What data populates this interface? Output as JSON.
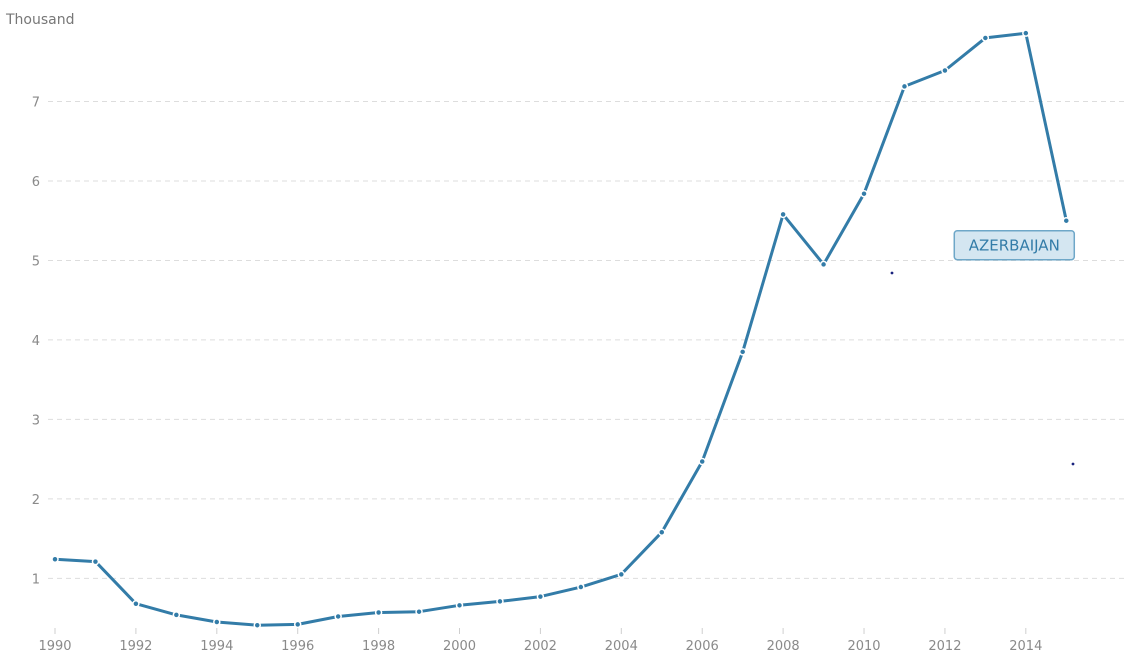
{
  "chart_data": {
    "type": "line",
    "y_unit_label": "Thousand",
    "x": [
      1990,
      1991,
      1992,
      1993,
      1994,
      1995,
      1996,
      1997,
      1998,
      1999,
      2000,
      2001,
      2002,
      2003,
      2004,
      2005,
      2006,
      2007,
      2008,
      2009,
      2010,
      2011,
      2012,
      2013,
      2014,
      2015
    ],
    "x_tick_labels": [
      "1990",
      "1992",
      "1994",
      "1996",
      "1998",
      "2000",
      "2002",
      "2004",
      "2006",
      "2008",
      "2010",
      "2012",
      "2014"
    ],
    "y_tick_labels": [
      "1",
      "2",
      "3",
      "4",
      "5",
      "6",
      "7"
    ],
    "ylim": [
      0.4,
      7.9
    ],
    "xlim": [
      1990,
      2016.6
    ],
    "grid": true,
    "series": [
      {
        "name": "AZERBAIJAN",
        "color": "#337ca8",
        "values": [
          1.24,
          1.21,
          0.68,
          0.54,
          0.45,
          0.41,
          0.42,
          0.52,
          0.57,
          0.58,
          0.66,
          0.71,
          0.77,
          0.89,
          1.05,
          1.58,
          2.47,
          3.85,
          5.58,
          4.95,
          5.84,
          7.19,
          7.39,
          7.8,
          7.86,
          5.5
        ]
      }
    ]
  }
}
